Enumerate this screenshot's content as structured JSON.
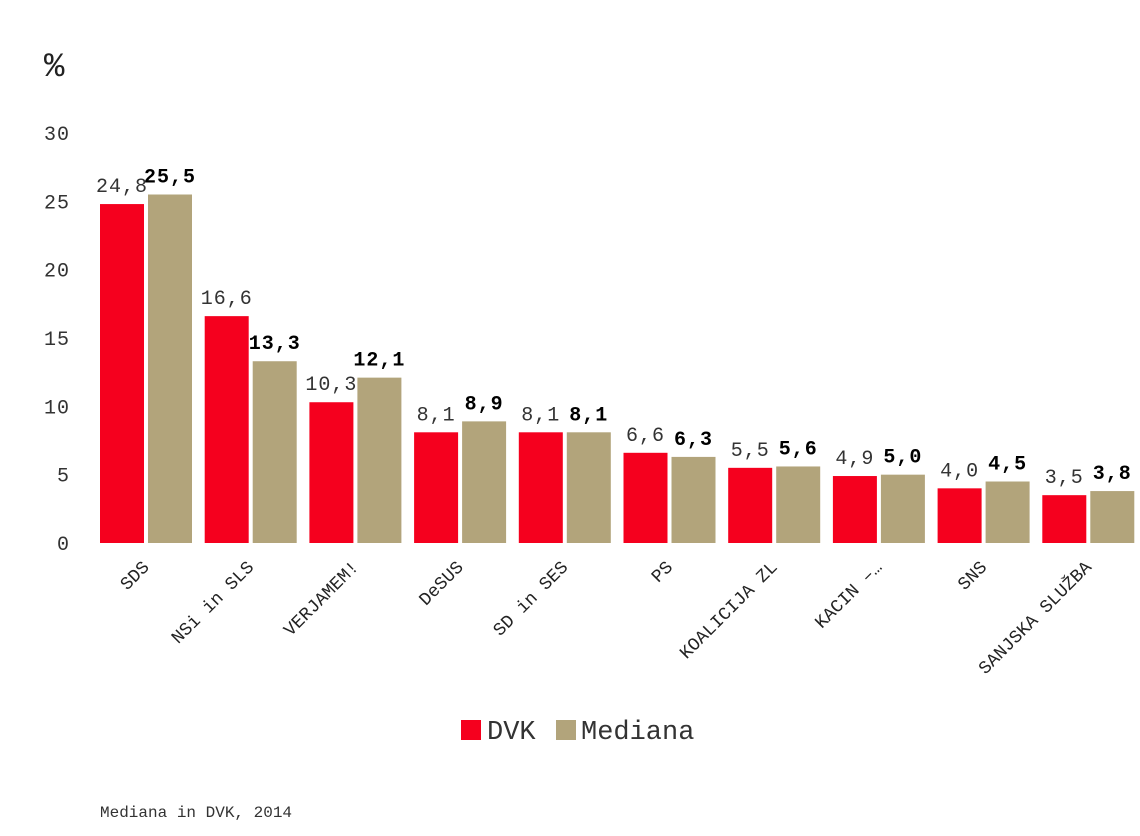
{
  "chart_data": {
    "type": "bar",
    "ylabel": "%",
    "ylim": [
      0,
      30
    ],
    "yticks": [
      "0",
      "5",
      "10",
      "15",
      "20",
      "25",
      "30"
    ],
    "categories": [
      "SDS",
      "NSi in SLS",
      "VERJAMEM!",
      "DeSUS",
      "SD in SES",
      "PS",
      "KOALICIJA ZL",
      "KACIN –…",
      "SNS",
      "SANJSKA SLUŽBA"
    ],
    "series": [
      {
        "name": "DVK",
        "color": "#F5001E",
        "values": [
          24.8,
          16.6,
          10.3,
          8.1,
          8.1,
          6.6,
          5.5,
          4.9,
          4.0,
          3.5
        ],
        "labels": [
          "24,8",
          "16,6",
          "10,3",
          "8,1",
          "8,1",
          "6,6",
          "5,5",
          "4,9",
          "4,0",
          "3,5"
        ]
      },
      {
        "name": "Mediana",
        "color": "#B2A47B",
        "values": [
          25.5,
          13.3,
          12.1,
          8.9,
          8.1,
          6.3,
          5.6,
          5.0,
          4.5,
          3.8
        ],
        "labels": [
          "25,5",
          "13,3",
          "12,1",
          "8,9",
          "8,1",
          "6,3",
          "5,6",
          "5,0",
          "4,5",
          "3,8"
        ]
      }
    ],
    "legend": {
      "position": "bottom",
      "items": [
        "DVK",
        "Mediana"
      ]
    },
    "source": "Mediana in DVK, 2014"
  }
}
